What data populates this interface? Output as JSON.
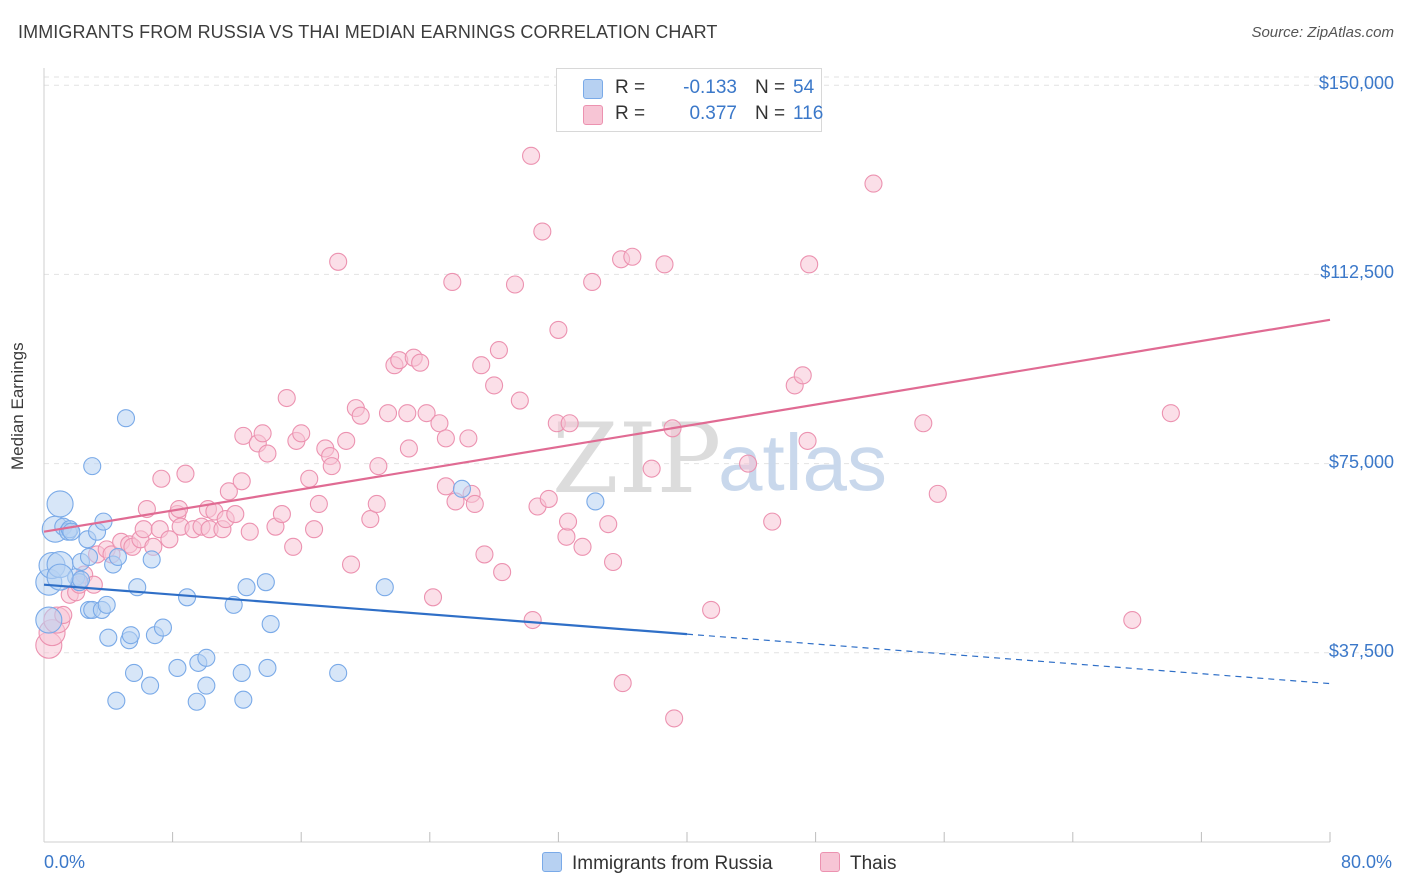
{
  "chart_data": {
    "type": "scatter",
    "title": "IMMIGRANTS FROM RUSSIA VS THAI MEDIAN EARNINGS CORRELATION CHART",
    "source": "Source: ZipAtlas.com",
    "xlabel": "",
    "ylabel": "Median Earnings",
    "xlim": [
      0,
      80
    ],
    "ylim": [
      0,
      155000
    ],
    "x_tick_labels": {
      "min": "0.0%",
      "max": "80.0%"
    },
    "y_ticks": [
      {
        "value": 37500,
        "label": "$37,500"
      },
      {
        "value": 75000,
        "label": "$75,000"
      },
      {
        "value": 112500,
        "label": "$112,500"
      },
      {
        "value": 150000,
        "label": "$150,000"
      }
    ],
    "watermark": {
      "part1": "ZIP",
      "part2": "atlas"
    },
    "series": [
      {
        "name": "Immigrants from Russia",
        "color": "#7aaae8",
        "fill": "#b7d1f2",
        "line_color": "#2f6fc7",
        "R": "-0.133",
        "N": "54",
        "trend": {
          "x0": 0,
          "y0": 51000,
          "x_solid_end": 40,
          "y_solid_end": 41200,
          "x1": 80,
          "y1": 31400
        },
        "points": [
          [
            0.3,
            51500
          ],
          [
            0.5,
            54800
          ],
          [
            0.7,
            62000
          ],
          [
            1.0,
            55000
          ],
          [
            1.0,
            67000
          ],
          [
            1.2,
            62500
          ],
          [
            1.5,
            61500
          ],
          [
            1.6,
            62000
          ],
          [
            1.7,
            61500
          ],
          [
            2.0,
            52500
          ],
          [
            2.2,
            51500
          ],
          [
            2.3,
            55500
          ],
          [
            2.3,
            52000
          ],
          [
            2.7,
            60000
          ],
          [
            2.8,
            56500
          ],
          [
            2.8,
            46000
          ],
          [
            3.0,
            74500
          ],
          [
            3.0,
            46000
          ],
          [
            3.3,
            61500
          ],
          [
            3.6,
            46000
          ],
          [
            3.7,
            63500
          ],
          [
            3.9,
            47000
          ],
          [
            4.0,
            40500
          ],
          [
            4.3,
            55000
          ],
          [
            4.5,
            28000
          ],
          [
            4.6,
            56500
          ],
          [
            5.1,
            84000
          ],
          [
            5.3,
            40000
          ],
          [
            5.4,
            41000
          ],
          [
            5.6,
            33500
          ],
          [
            5.8,
            50500
          ],
          [
            6.6,
            31000
          ],
          [
            6.7,
            56000
          ],
          [
            6.9,
            41000
          ],
          [
            7.4,
            42500
          ],
          [
            8.3,
            34500
          ],
          [
            8.9,
            48500
          ],
          [
            9.5,
            27800
          ],
          [
            9.6,
            35500
          ],
          [
            10.1,
            36500
          ],
          [
            10.1,
            31000
          ],
          [
            11.8,
            47000
          ],
          [
            12.3,
            33500
          ],
          [
            12.4,
            28200
          ],
          [
            12.6,
            50500
          ],
          [
            13.8,
            51500
          ],
          [
            13.9,
            34500
          ],
          [
            14.1,
            43200
          ],
          [
            18.3,
            33500
          ],
          [
            21.2,
            50500
          ],
          [
            26.0,
            70000
          ],
          [
            34.3,
            67500
          ],
          [
            0.3,
            44000
          ],
          [
            1.0,
            52500
          ]
        ]
      },
      {
        "name": "Thais",
        "color": "#ec92b0",
        "fill": "#f7c5d5",
        "line_color": "#e06b93",
        "R": "0.377",
        "N": "116",
        "trend": {
          "x0": 0,
          "y0": 61500,
          "x1": 80,
          "y1": 103500
        },
        "points": [
          [
            0.3,
            39000
          ],
          [
            0.5,
            41500
          ],
          [
            0.8,
            44000
          ],
          [
            1.2,
            45000
          ],
          [
            1.6,
            49000
          ],
          [
            2.0,
            49500
          ],
          [
            2.2,
            51000
          ],
          [
            2.5,
            53000
          ],
          [
            3.1,
            51000
          ],
          [
            3.3,
            57000
          ],
          [
            3.9,
            58000
          ],
          [
            4.2,
            57000
          ],
          [
            4.8,
            59500
          ],
          [
            5.3,
            59000
          ],
          [
            5.5,
            58500
          ],
          [
            6.0,
            60000
          ],
          [
            6.2,
            62000
          ],
          [
            6.4,
            66000
          ],
          [
            6.8,
            58500
          ],
          [
            7.2,
            62000
          ],
          [
            7.3,
            72000
          ],
          [
            7.8,
            60000
          ],
          [
            8.3,
            65000
          ],
          [
            8.4,
            66000
          ],
          [
            8.5,
            62500
          ],
          [
            8.8,
            73000
          ],
          [
            9.3,
            62000
          ],
          [
            9.8,
            62500
          ],
          [
            10.2,
            66000
          ],
          [
            10.3,
            62000
          ],
          [
            10.6,
            65500
          ],
          [
            11.1,
            62000
          ],
          [
            11.3,
            64000
          ],
          [
            11.5,
            69500
          ],
          [
            11.9,
            65000
          ],
          [
            12.3,
            71500
          ],
          [
            12.4,
            80500
          ],
          [
            12.8,
            61500
          ],
          [
            13.3,
            79000
          ],
          [
            13.6,
            81000
          ],
          [
            13.9,
            77000
          ],
          [
            14.4,
            62500
          ],
          [
            14.8,
            65000
          ],
          [
            15.1,
            88000
          ],
          [
            15.5,
            58500
          ],
          [
            15.7,
            79500
          ],
          [
            16.0,
            81000
          ],
          [
            16.5,
            72000
          ],
          [
            16.8,
            62000
          ],
          [
            17.1,
            67000
          ],
          [
            17.5,
            78000
          ],
          [
            17.8,
            76500
          ],
          [
            17.9,
            74500
          ],
          [
            18.3,
            115000
          ],
          [
            18.8,
            79500
          ],
          [
            19.1,
            55000
          ],
          [
            19.4,
            86000
          ],
          [
            19.7,
            84500
          ],
          [
            20.3,
            64000
          ],
          [
            20.7,
            67000
          ],
          [
            20.8,
            74500
          ],
          [
            21.4,
            85000
          ],
          [
            21.8,
            94500
          ],
          [
            22.1,
            95500
          ],
          [
            22.6,
            85000
          ],
          [
            22.7,
            78000
          ],
          [
            23.0,
            96000
          ],
          [
            23.4,
            95000
          ],
          [
            23.8,
            85000
          ],
          [
            24.2,
            48500
          ],
          [
            24.6,
            83000
          ],
          [
            25.0,
            80000
          ],
          [
            25.0,
            70500
          ],
          [
            25.4,
            111000
          ],
          [
            25.6,
            67500
          ],
          [
            26.4,
            80000
          ],
          [
            26.6,
            69000
          ],
          [
            26.8,
            67000
          ],
          [
            27.2,
            94500
          ],
          [
            27.4,
            57000
          ],
          [
            28.0,
            90500
          ],
          [
            28.3,
            97500
          ],
          [
            28.5,
            53500
          ],
          [
            29.3,
            110500
          ],
          [
            29.6,
            87500
          ],
          [
            30.3,
            136000
          ],
          [
            30.4,
            44000
          ],
          [
            30.7,
            66500
          ],
          [
            31.0,
            121000
          ],
          [
            31.4,
            68000
          ],
          [
            31.9,
            83000
          ],
          [
            32.0,
            101500
          ],
          [
            32.5,
            60500
          ],
          [
            32.6,
            63500
          ],
          [
            32.7,
            83000
          ],
          [
            33.5,
            58500
          ],
          [
            34.1,
            111000
          ],
          [
            35.1,
            63000
          ],
          [
            35.4,
            55500
          ],
          [
            35.9,
            115500
          ],
          [
            36.0,
            31500
          ],
          [
            36.6,
            116000
          ],
          [
            37.8,
            74000
          ],
          [
            38.6,
            114500
          ],
          [
            39.1,
            82000
          ],
          [
            39.2,
            24500
          ],
          [
            41.5,
            46000
          ],
          [
            43.8,
            75000
          ],
          [
            45.3,
            63500
          ],
          [
            46.7,
            90500
          ],
          [
            47.2,
            92500
          ],
          [
            47.5,
            79500
          ],
          [
            47.6,
            114500
          ],
          [
            51.6,
            130500
          ],
          [
            54.7,
            83000
          ],
          [
            55.6,
            69000
          ],
          [
            67.7,
            44000
          ],
          [
            70.1,
            85000
          ]
        ]
      }
    ]
  }
}
